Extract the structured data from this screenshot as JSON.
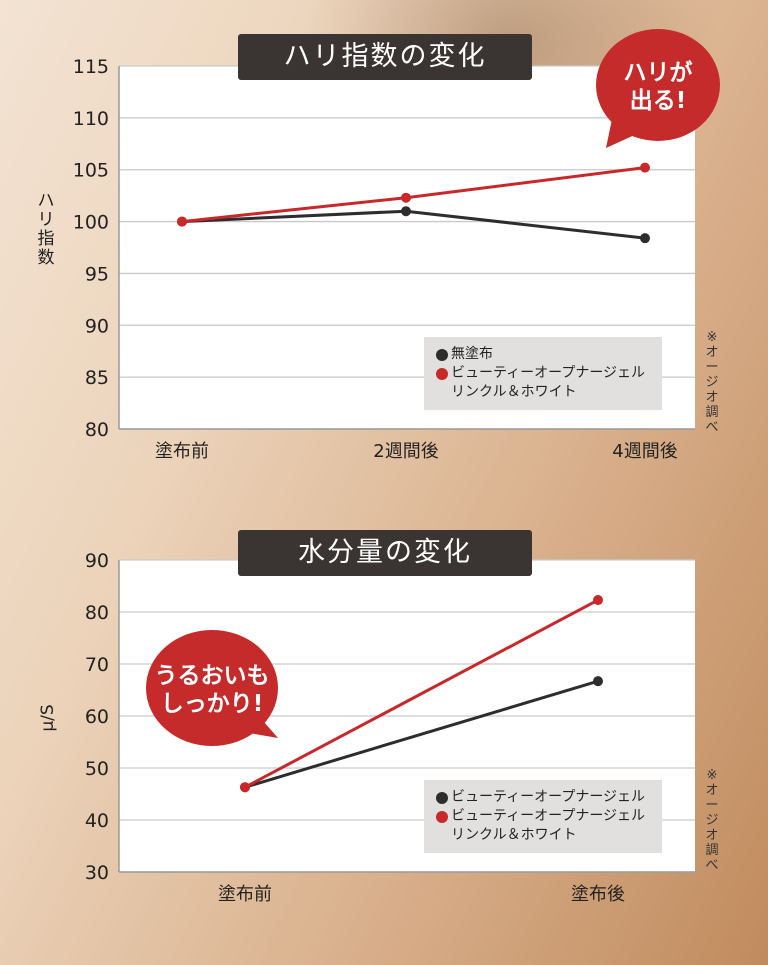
{
  "colors": {
    "black_series": "#2e2c2c",
    "red_series": "#c8282a",
    "bubble": "#c42b2a",
    "title_bg": "#3a3533",
    "grid": "#c9c9c9"
  },
  "chart_data": [
    {
      "type": "line",
      "title": "ハリ指数の変化",
      "ylabel": "ハリ指数",
      "categories": [
        "塗布前",
        "2週間後",
        "4週間後"
      ],
      "ylim": [
        80,
        115
      ],
      "yticks": [
        80,
        85,
        90,
        95,
        100,
        105,
        110,
        115
      ],
      "series": [
        {
          "name": "無塗布",
          "color": "#2e2c2c",
          "values": [
            100,
            101,
            98.4
          ]
        },
        {
          "name": "ビューティーオープナージェル\nリンクル＆ホワイト",
          "color": "#c8282a",
          "values": [
            100,
            102.3,
            105.2
          ]
        }
      ],
      "bubble": "ハリが\n出る!",
      "note": "※オージオ調べ",
      "legend_position": "bottom-right",
      "grid": true
    },
    {
      "type": "line",
      "title": "水分量の変化",
      "ylabel": "μ/S",
      "categories": [
        "塗布前",
        "塗布後"
      ],
      "ylim": [
        30,
        90
      ],
      "yticks": [
        30,
        40,
        50,
        60,
        70,
        80,
        90
      ],
      "series": [
        {
          "name": "ビューティーオープナージェル",
          "color": "#2e2c2c",
          "values": [
            46.3,
            66.7
          ]
        },
        {
          "name": "ビューティーオープナージェル\nリンクル＆ホワイト",
          "color": "#c8282a",
          "values": [
            46.3,
            82.3
          ]
        }
      ],
      "bubble": "うるおいも\nしっかり!",
      "note": "※オージオ調べ",
      "legend_position": "bottom-right",
      "grid": true
    }
  ]
}
